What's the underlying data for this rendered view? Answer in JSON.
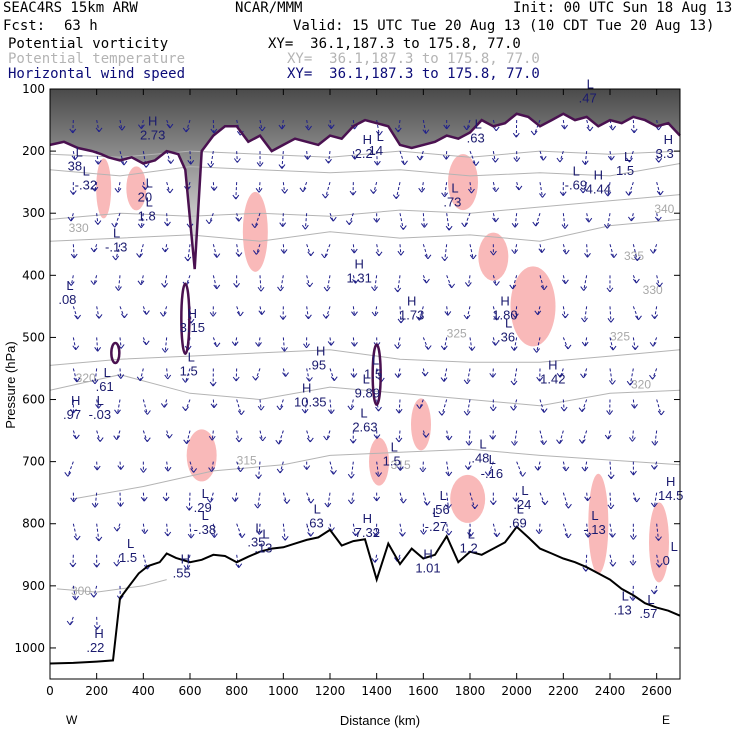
{
  "header": {
    "model": "SEAC4RS 15km ARW",
    "org": "NCAR/MMM",
    "init": "Init: 00 UTC Sun 18 Aug 13",
    "fcst_label": "Fcst:",
    "fcst_value": "63 h",
    "valid": "Valid: 15 UTC Tue 20 Aug 13 (10 CDT Tue 20 Aug 13)"
  },
  "legend": [
    {
      "label": "Potential vorticity",
      "xy": "XY=  36.1,187.3 to 175.8, 77.0",
      "color": "#000000"
    },
    {
      "label": "Potential temperature",
      "xy": "XY=  36.1,187.3 to 175.8, 77.0",
      "color": "#b4b4b4"
    },
    {
      "label": "Horizontal wind speed",
      "xy": "XY=  36.1,187.3 to 175.8, 77.0",
      "color": "#0c0c78"
    }
  ],
  "chart_data": {
    "type": "line",
    "xlabel": "Distance (km)",
    "ylabel": "Pressure (hPa)",
    "xlim": [
      0,
      2700
    ],
    "ylim": [
      1050,
      100
    ],
    "x_ticks": [
      0,
      200,
      400,
      600,
      800,
      1000,
      1200,
      1400,
      1600,
      1800,
      2000,
      2200,
      2400,
      2600
    ],
    "y_ticks": [
      100,
      200,
      300,
      400,
      500,
      600,
      700,
      800,
      900,
      1000
    ],
    "x_end_labels": {
      "left": "W",
      "right": "E"
    },
    "terrain_surface": {
      "name": "Surface pressure (terrain)",
      "x": [
        0,
        100,
        200,
        270,
        300,
        340,
        380,
        420,
        470,
        500,
        540,
        600,
        650,
        700,
        750,
        800,
        850,
        900,
        950,
        1000,
        1050,
        1100,
        1150,
        1200,
        1250,
        1300,
        1350,
        1400,
        1450,
        1500,
        1550,
        1600,
        1650,
        1700,
        1750,
        1800,
        1850,
        1900,
        1950,
        2000,
        2050,
        2100,
        2150,
        2200,
        2250,
        2300,
        2350,
        2400,
        2450,
        2500,
        2550,
        2600,
        2650,
        2700
      ],
      "y": [
        1025,
        1024,
        1022,
        1020,
        920,
        900,
        880,
        868,
        862,
        848,
        855,
        862,
        858,
        850,
        852,
        862,
        853,
        845,
        840,
        838,
        832,
        826,
        822,
        810,
        835,
        828,
        825,
        890,
        832,
        865,
        840,
        856,
        850,
        820,
        862,
        845,
        850,
        840,
        830,
        805,
        822,
        840,
        848,
        856,
        862,
        870,
        880,
        890,
        905,
        915,
        928,
        935,
        940,
        948
      ]
    },
    "theta_contours": [
      {
        "label": "300",
        "x": [
          30,
          200,
          400,
          500
        ],
        "y": [
          905,
          910,
          900,
          890
        ]
      },
      {
        "label": "315",
        "x": [
          100,
          400,
          700,
          1000,
          1200,
          1500,
          1800,
          2100,
          2500,
          2700
        ],
        "y": [
          760,
          740,
          715,
          705,
          690,
          685,
          680,
          690,
          700,
          705
        ]
      },
      {
        "label": "320",
        "x": [
          0,
          300,
          600,
          900,
          1200,
          1500,
          1800,
          2100,
          2400,
          2700
        ],
        "y": [
          585,
          560,
          590,
          600,
          580,
          590,
          600,
          610,
          590,
          585
        ]
      },
      {
        "label": "325",
        "x": [
          0,
          300,
          600,
          900,
          1200,
          1500,
          1800,
          2100,
          2400,
          2700
        ],
        "y": [
          545,
          535,
          530,
          525,
          520,
          535,
          540,
          540,
          530,
          520
        ]
      },
      {
        "label": "330",
        "x": [
          0,
          300,
          600,
          900,
          1200,
          1500,
          1800,
          2100,
          2400,
          2700
        ],
        "y": [
          345,
          340,
          335,
          345,
          330,
          340,
          335,
          345,
          320,
          310
        ]
      },
      {
        "label": "335",
        "x": [
          0,
          300,
          600,
          900,
          1200,
          1500,
          1800,
          2100,
          2400,
          2700
        ],
        "y": [
          310,
          300,
          305,
          300,
          305,
          295,
          300,
          290,
          280,
          270
        ]
      },
      {
        "label": "340",
        "x": [
          0,
          300,
          600,
          900,
          1200,
          1500,
          1800,
          2100,
          2400,
          2700
        ],
        "y": [
          230,
          240,
          225,
          230,
          235,
          230,
          240,
          235,
          240,
          220
        ]
      },
      {
        "label": "",
        "x": [
          0,
          300,
          600,
          900,
          1200,
          1500,
          1800,
          2100,
          2400,
          2700
        ],
        "y": [
          205,
          210,
          200,
          205,
          210,
          200,
          210,
          200,
          205,
          200
        ]
      }
    ],
    "pv_tropopause": {
      "name": "Potential vorticity 2 PVU",
      "x": [
        0,
        60,
        120,
        180,
        220,
        250,
        300,
        350,
        400,
        450,
        500,
        550,
        580,
        620,
        650,
        700,
        750,
        800,
        850,
        900,
        950,
        1000,
        1050,
        1100,
        1150,
        1200,
        1250,
        1300,
        1350,
        1400,
        1450,
        1500,
        1550,
        1600,
        1650,
        1700,
        1750,
        1800,
        1850,
        1900,
        1950,
        2000,
        2050,
        2100,
        2150,
        2200,
        2250,
        2300,
        2350,
        2400,
        2450,
        2500,
        2550,
        2600,
        2650,
        2700
      ],
      "y": [
        190,
        185,
        195,
        200,
        205,
        210,
        215,
        210,
        220,
        215,
        200,
        205,
        230,
        390,
        200,
        175,
        160,
        160,
        185,
        175,
        200,
        190,
        180,
        185,
        190,
        175,
        180,
        160,
        150,
        155,
        160,
        190,
        195,
        190,
        185,
        175,
        180,
        170,
        150,
        160,
        155,
        140,
        145,
        160,
        150,
        140,
        150,
        145,
        160,
        150,
        155,
        145,
        150,
        160,
        155,
        175
      ]
    },
    "extrema_labels": [
      {
        "label": "L",
        "value": "38",
        "x": 110,
        "y": 225
      },
      {
        "label": "L",
        "value": "-.32",
        "x": 140,
        "y": 255
      },
      {
        "label": "H",
        "value": "2.73",
        "x": 420,
        "y": 175
      },
      {
        "label": "L",
        "value": "-.13",
        "x": 270,
        "y": 355
      },
      {
        "label": "L",
        "value": "20",
        "x": 410,
        "y": 275
      },
      {
        "label": "L",
        "value": "1.8",
        "x": 410,
        "y": 305
      },
      {
        "label": "L",
        "value": ".08",
        "x": 70,
        "y": 440
      },
      {
        "label": "H",
        "value": "3.15",
        "x": 590,
        "y": 485
      },
      {
        "label": "L",
        "value": "1.5",
        "x": 590,
        "y": 555
      },
      {
        "label": "L",
        "value": ".61",
        "x": 230,
        "y": 580
      },
      {
        "label": "L",
        "value": "-.03",
        "x": 200,
        "y": 625
      },
      {
        "label": "H",
        "value": ".97",
        "x": 90,
        "y": 625
      },
      {
        "label": "H",
        "value": "2.2",
        "x": 1340,
        "y": 205
      },
      {
        "label": "L",
        "value": "14",
        "x": 1400,
        "y": 200
      },
      {
        "label": "H",
        "value": "1.31",
        "x": 1305,
        "y": 405
      },
      {
        "label": "H",
        "value": ".95",
        "x": 1140,
        "y": 545
      },
      {
        "label": "H",
        "value": "10.35",
        "x": 1080,
        "y": 605
      },
      {
        "label": "L",
        "value": "1.5",
        "x": 1380,
        "y": 560
      },
      {
        "label": "L",
        "value": "9.89",
        "x": 1340,
        "y": 590
      },
      {
        "label": "L",
        "value": "2.63",
        "x": 1330,
        "y": 645
      },
      {
        "label": "H",
        "value": "1.73",
        "x": 1530,
        "y": 465
      },
      {
        "label": "H",
        "value": "1.80",
        "x": 1930,
        "y": 465
      },
      {
        "label": "L",
        "value": ".36",
        "x": 1950,
        "y": 500
      },
      {
        "label": "H",
        "value": "1.42",
        "x": 2135,
        "y": 568
      },
      {
        "label": "L",
        "value": ".73",
        "x": 1720,
        "y": 283
      },
      {
        "label": "L",
        "value": ".63",
        "x": 1820,
        "y": 180
      },
      {
        "label": "L",
        "value": "-.69",
        "x": 2240,
        "y": 255
      },
      {
        "label": "H",
        "value": "4.44",
        "x": 2330,
        "y": 262
      },
      {
        "label": "L",
        "value": "1.5",
        "x": 2460,
        "y": 232
      },
      {
        "label": "H",
        "value": "3.3",
        "x": 2630,
        "y": 205
      },
      {
        "label": "L",
        "value": ".47",
        "x": 2300,
        "y": 115
      },
      {
        "label": "L",
        "value": ".48",
        "x": 1840,
        "y": 695
      },
      {
        "label": "L",
        "value": "-.16",
        "x": 1880,
        "y": 720
      },
      {
        "label": "L",
        "value": ".24",
        "x": 2020,
        "y": 770
      },
      {
        "label": "L",
        "value": ".69",
        "x": 2000,
        "y": 800
      },
      {
        "label": "L",
        "value": ".56",
        "x": 1670,
        "y": 778
      },
      {
        "label": "L",
        "value": "-.27",
        "x": 1640,
        "y": 805
      },
      {
        "label": "L",
        "value": "1.2",
        "x": 1790,
        "y": 840
      },
      {
        "label": "H",
        "value": "1.01",
        "x": 1600,
        "y": 872
      },
      {
        "label": "L",
        "value": "-.13",
        "x": 2320,
        "y": 810
      },
      {
        "label": "H",
        "value": "14.5",
        "x": 2640,
        "y": 755
      },
      {
        "label": "L",
        "value": "0",
        "x": 2660,
        "y": 860
      },
      {
        "label": "L",
        "value": ".57",
        "x": 2560,
        "y": 945
      },
      {
        "label": "L",
        "value": ".13",
        "x": 2450,
        "y": 940
      },
      {
        "label": "L",
        "value": ".29",
        "x": 650,
        "y": 775
      },
      {
        "label": "L",
        "value": "-.38",
        "x": 650,
        "y": 810
      },
      {
        "label": "L",
        "value": ".35",
        "x": 880,
        "y": 830
      },
      {
        "label": "L",
        "value": ".13",
        "x": 910,
        "y": 840
      },
      {
        "label": "L",
        "value": ".63",
        "x": 1130,
        "y": 800
      },
      {
        "label": "H",
        "value": "7.32",
        "x": 1340,
        "y": 815
      },
      {
        "label": "H",
        "value": ".55",
        "x": 560,
        "y": 880
      },
      {
        "label": "L",
        "value": "1.5",
        "x": 330,
        "y": 855
      },
      {
        "label": "H",
        "value": ".22",
        "x": 190,
        "y": 1000
      },
      {
        "label": "L",
        "value": "1.5",
        "x": 1460,
        "y": 700
      }
    ],
    "theta_labels": [
      {
        "label": "330",
        "x": 80,
        "y": 330
      },
      {
        "label": "335",
        "x": 2460,
        "y": 375
      },
      {
        "label": "340",
        "x": 2590,
        "y": 300
      },
      {
        "label": "330",
        "x": 2540,
        "y": 430
      },
      {
        "label": "325",
        "x": 1700,
        "y": 500
      },
      {
        "label": "325",
        "x": 2400,
        "y": 505
      },
      {
        "label": "320",
        "x": 110,
        "y": 572
      },
      {
        "label": "320",
        "x": 2490,
        "y": 582
      },
      {
        "label": "315",
        "x": 800,
        "y": 705
      },
      {
        "label": "315",
        "x": 1460,
        "y": 712
      },
      {
        "label": "300",
        "x": 90,
        "y": 915
      }
    ],
    "grid": false,
    "legend_position": "top-left"
  }
}
